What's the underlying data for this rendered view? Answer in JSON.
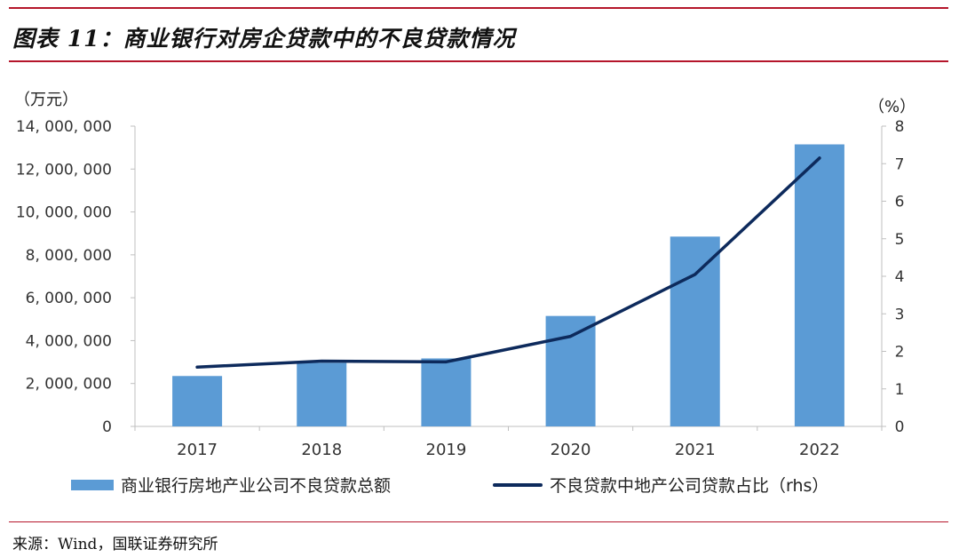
{
  "header": {
    "title": "图表 11：商业银行对房企贷款中的不良贷款情况"
  },
  "chart_data": {
    "type": "bar+line",
    "categories": [
      "2017",
      "2018",
      "2019",
      "2020",
      "2021",
      "2022"
    ],
    "series": [
      {
        "name": "商业银行房地产业公司不良贷款总额",
        "type": "bar",
        "axis": "left",
        "values": [
          2350000,
          2960000,
          3170000,
          5150000,
          8850000,
          13150000
        ]
      },
      {
        "name": "不良贷款中地产公司贷款占比（rhs）",
        "type": "line",
        "axis": "right",
        "values": [
          1.58,
          1.74,
          1.72,
          2.4,
          4.05,
          7.15
        ]
      }
    ],
    "left_axis": {
      "unit": "（万元）",
      "ylim": [
        0,
        14000000
      ],
      "tick_labels": [
        "0",
        "2, 000, 000",
        "4, 000, 000",
        "6, 000, 000",
        "8, 000, 000",
        "10, 000, 000",
        "12, 000, 000",
        "14, 000, 000"
      ]
    },
    "right_axis": {
      "unit": "（%）",
      "ylim": [
        0,
        8
      ],
      "tick_labels": [
        "0",
        "1",
        "2",
        "3",
        "4",
        "5",
        "6",
        "7",
        "8"
      ]
    },
    "colors": {
      "bar": "#5b9bd5",
      "line": "#0d2a5c",
      "accent": "#b5162b"
    }
  },
  "footer": {
    "source": "来源：Wind，国联证券研究所"
  }
}
